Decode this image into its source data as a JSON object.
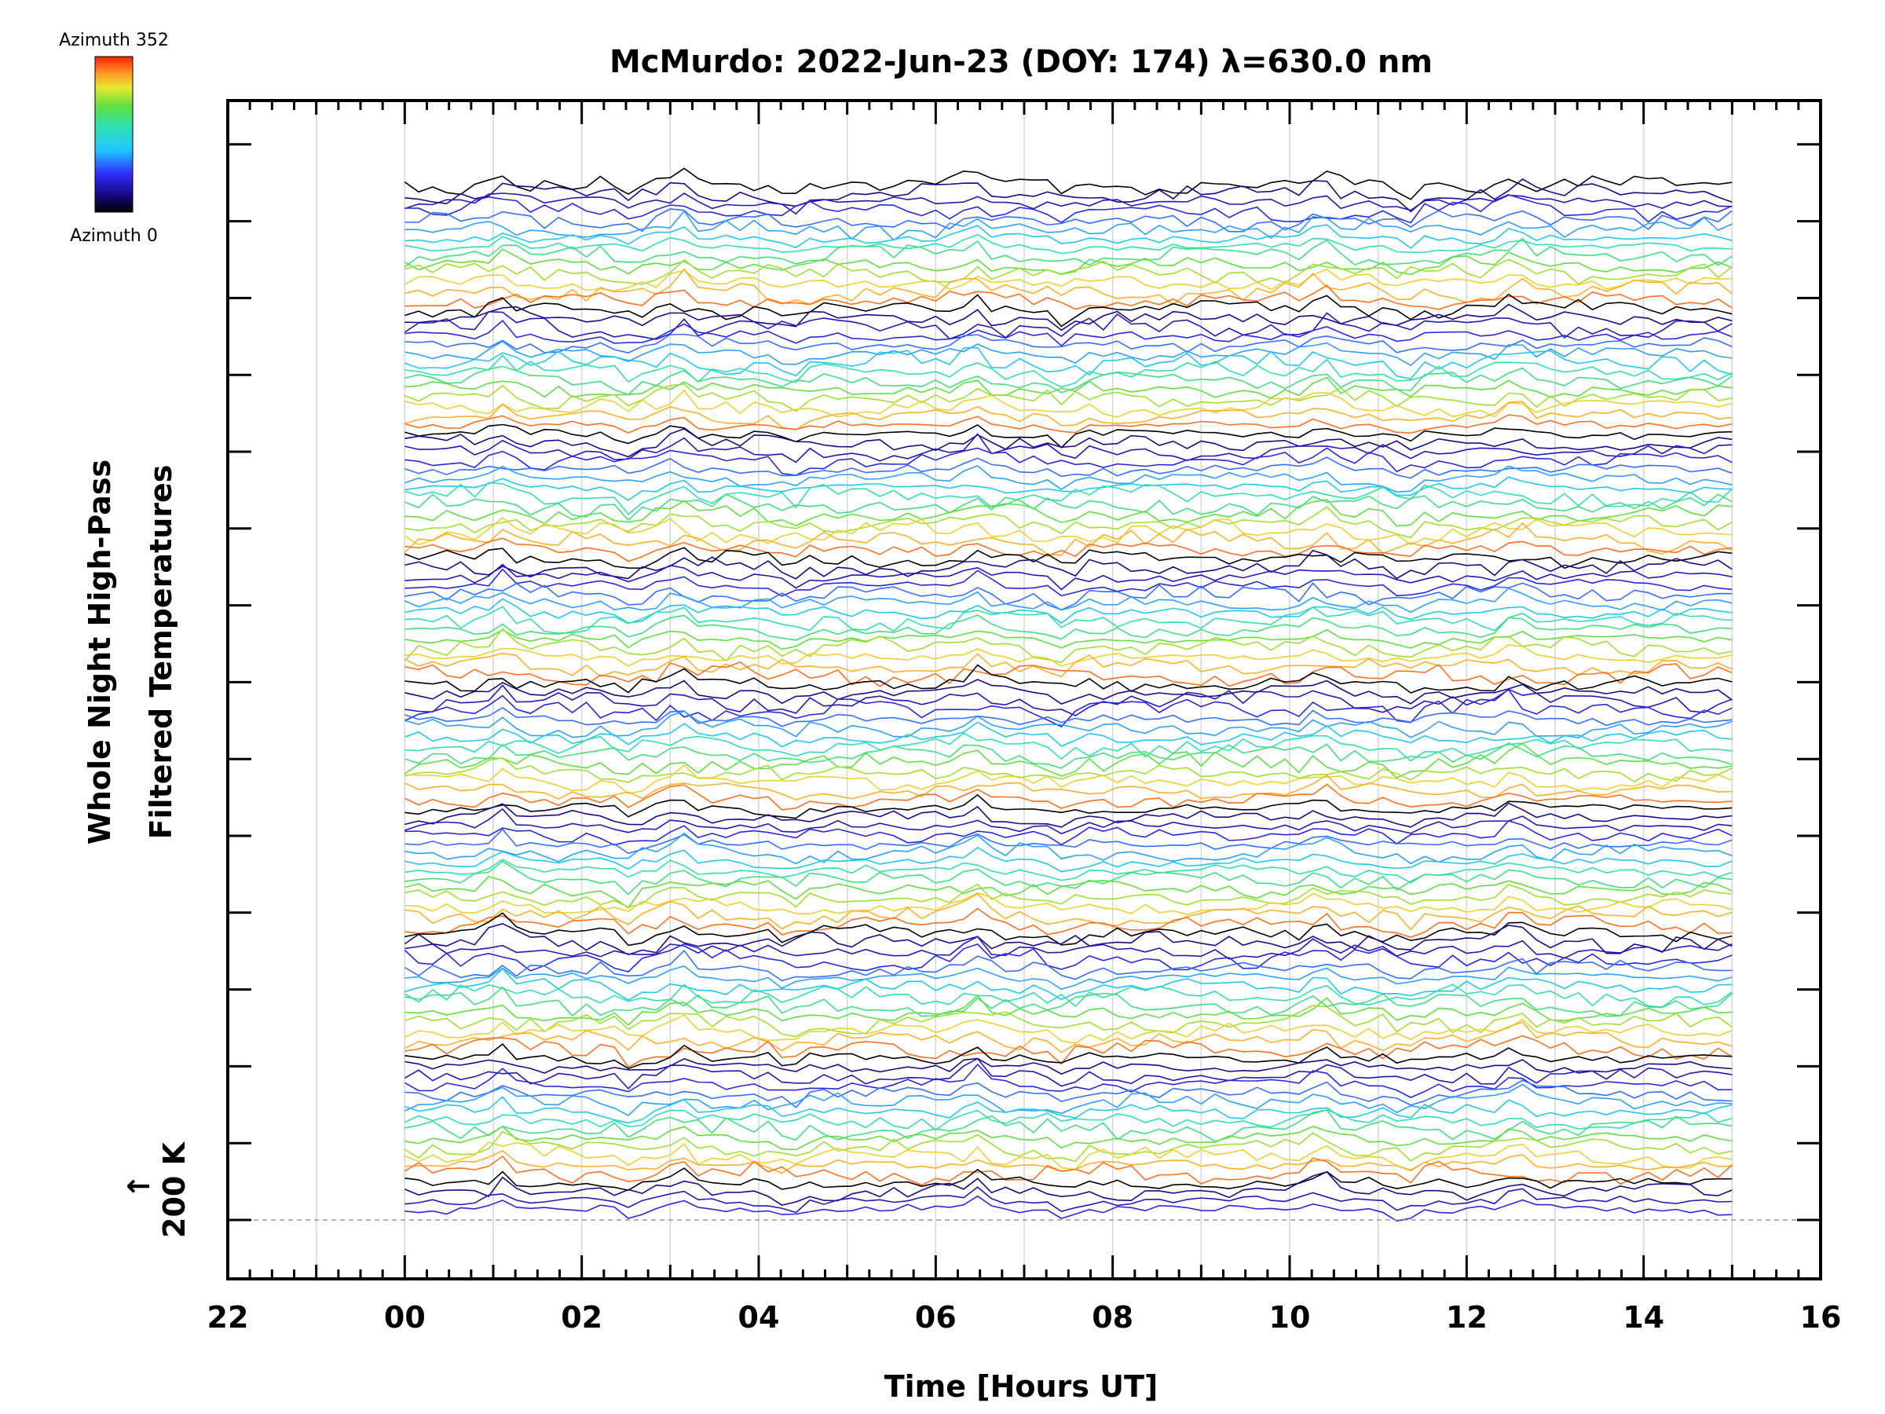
{
  "chart_data": {
    "type": "line",
    "title": "McMurdo: 2022-Jun-23 (DOY: 174) λ=630.0 nm",
    "xlabel": "Time [Hours UT]",
    "ylabel_line1": "Whole Night High-Pass",
    "ylabel_line2": "Filtered Temperatures",
    "x_tick_labels": [
      "22",
      "00",
      "02",
      "04",
      "06",
      "08",
      "10",
      "12",
      "14",
      "16"
    ],
    "x_tick_hours": [
      -2,
      0,
      2,
      4,
      6,
      8,
      10,
      12,
      14,
      16
    ],
    "xlim_hours": [
      -2,
      16
    ],
    "data_span_hours": [
      0,
      15
    ],
    "reference_label": "200 K",
    "reference_arrow": "↑",
    "series_count": 116,
    "series_groups": 8,
    "grid": "vertical-hourly",
    "legend": {
      "type": "colorbar",
      "placement": "top-left",
      "top_label": "Azimuth 352",
      "bottom_label": "Azimuth 0",
      "colormap": "rainbow",
      "min": 0,
      "max": 352
    }
  }
}
